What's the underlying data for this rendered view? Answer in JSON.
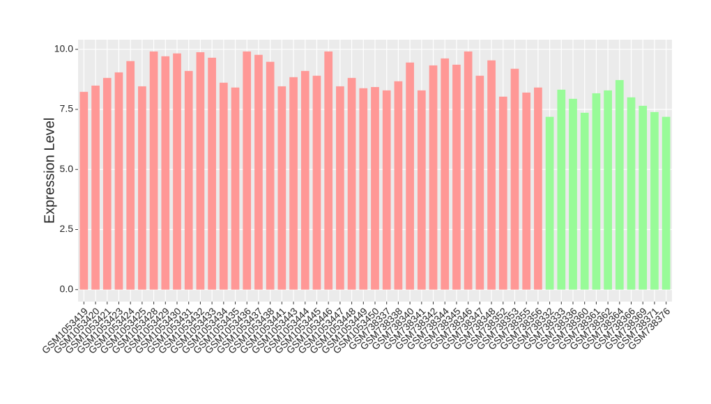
{
  "chart_data": {
    "type": "bar",
    "y_label": "Expression Level",
    "categories": [
      "GSM1053419",
      "GSM1053420",
      "GSM1053421",
      "GSM1053423",
      "GSM1053424",
      "GSM1053425",
      "GSM1053428",
      "GSM1053429",
      "GSM1053430",
      "GSM1053431",
      "GSM1053432",
      "GSM1053433",
      "GSM1053434",
      "GSM1053435",
      "GSM1053436",
      "GSM1053437",
      "GSM1053438",
      "GSM1053441",
      "GSM1053443",
      "GSM1053444",
      "GSM1053445",
      "GSM1053446",
      "GSM1053447",
      "GSM1053448",
      "GSM1053449",
      "GSM1053450",
      "GSM738337",
      "GSM738338",
      "GSM738340",
      "GSM738341",
      "GSM738342",
      "GSM738344",
      "GSM738345",
      "GSM738346",
      "GSM738347",
      "GSM738348",
      "GSM738352",
      "GSM738353",
      "GSM738355",
      "GSM738356",
      "GSM738332",
      "GSM738333",
      "GSM738336",
      "GSM738360",
      "GSM738361",
      "GSM738362",
      "GSM738364",
      "GSM738366",
      "GSM738369",
      "GSM738371",
      "GSM738376"
    ],
    "values": [
      8.23,
      8.49,
      8.81,
      9.04,
      9.51,
      8.46,
      9.91,
      9.71,
      9.83,
      9.1,
      9.88,
      9.65,
      8.61,
      8.41,
      9.91,
      9.77,
      9.48,
      8.46,
      8.84,
      9.1,
      8.9,
      9.91,
      8.46,
      8.81,
      8.38,
      8.43,
      8.29,
      8.67,
      9.45,
      8.29,
      9.33,
      9.62,
      9.36,
      9.91,
      8.9,
      9.54,
      8.03,
      9.19,
      8.2,
      8.41,
      7.19,
      8.32,
      7.94,
      7.36,
      8.17,
      8.29,
      8.72,
      8.0,
      7.65,
      7.39,
      7.19
    ],
    "bar_colors": [
      "#ff9896",
      "#ff9896",
      "#ff9896",
      "#ff9896",
      "#ff9896",
      "#ff9896",
      "#ff9896",
      "#ff9896",
      "#ff9896",
      "#ff9896",
      "#ff9896",
      "#ff9896",
      "#ff9896",
      "#ff9896",
      "#ff9896",
      "#ff9896",
      "#ff9896",
      "#ff9896",
      "#ff9896",
      "#ff9896",
      "#ff9896",
      "#ff9896",
      "#ff9896",
      "#ff9896",
      "#ff9896",
      "#ff9896",
      "#ff9896",
      "#ff9896",
      "#ff9896",
      "#ff9896",
      "#ff9896",
      "#ff9896",
      "#ff9896",
      "#ff9896",
      "#ff9896",
      "#ff9896",
      "#ff9896",
      "#ff9896",
      "#ff9896",
      "#ff9896",
      "#98fb98",
      "#98fb98",
      "#98fb98",
      "#98fb98",
      "#98fb98",
      "#98fb98",
      "#98fb98",
      "#98fb98",
      "#98fb98",
      "#98fb98",
      "#98fb98"
    ],
    "ylim": [
      -0.5,
      10.4
    ],
    "yticks": [
      {
        "value": 0,
        "label": "0.0"
      },
      {
        "value": 2.5,
        "label": "2.5"
      },
      {
        "value": 5,
        "label": "5.0"
      },
      {
        "value": 7.5,
        "label": "7.5"
      },
      {
        "value": 10,
        "label": "10.0"
      }
    ],
    "grid": true
  }
}
